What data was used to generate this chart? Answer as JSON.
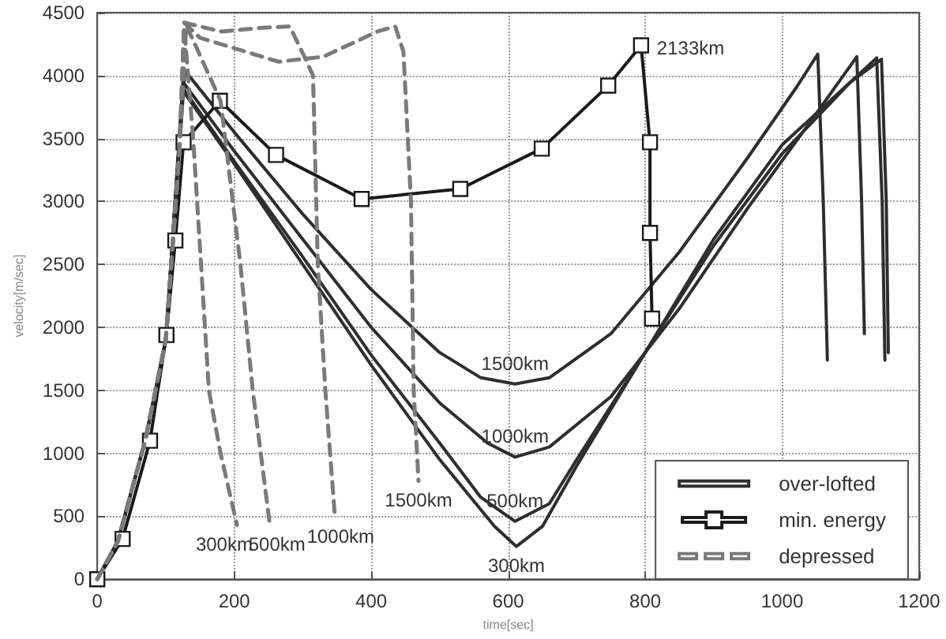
{
  "chart_data": {
    "type": "line",
    "xlabel": "time[sec]",
    "ylabel": "velocity[m/sec]",
    "xlim": [
      0,
      1200
    ],
    "xticks": [
      0,
      200,
      400,
      600,
      800,
      1000,
      1200
    ],
    "ylim": [
      0,
      4500
    ],
    "yticks": [
      0,
      500,
      1000,
      1500,
      2000,
      2500,
      3000,
      3500,
      4000,
      4500
    ],
    "grid": true,
    "legend": "bottom right",
    "marker": "none",
    "line_style": "solid",
    "series": [
      {
        "name": "over-lofted",
        "color": "#2e2e2e",
        "x": [
          0,
          30,
          70,
          100,
          125,
          200,
          300,
          400,
          500,
          580,
          612,
          650,
          700,
          800,
          900,
          1000,
          1100,
          1145,
          1152,
          1155
        ],
        "values": [
          0,
          300,
          1100,
          1900,
          3880,
          3300,
          2500,
          1700,
          950,
          420,
          260,
          420,
          900,
          1800,
          2700,
          3450,
          3950,
          4130,
          3000,
          1800
        ]
      },
      {
        "color": "#2e2e2e",
        "x": [
          0,
          30,
          70,
          100,
          125,
          200,
          300,
          400,
          500,
          560,
          610,
          660,
          700,
          800,
          900,
          1000,
          1100,
          1138,
          1146,
          1150
        ],
        "values": [
          0,
          300,
          1100,
          1900,
          3900,
          3320,
          2560,
          1780,
          1080,
          650,
          460,
          600,
          950,
          1800,
          2650,
          3380,
          3950,
          4140,
          3000,
          1740
        ]
      },
      {
        "color": "#2e2e2e",
        "x": [
          0,
          30,
          70,
          100,
          125,
          200,
          300,
          400,
          500,
          570,
          610,
          660,
          750,
          850,
          950,
          1050,
          1109,
          1116,
          1120
        ],
        "values": [
          0,
          300,
          1100,
          1900,
          3950,
          3400,
          2700,
          2000,
          1400,
          1080,
          970,
          1050,
          1450,
          2150,
          2950,
          3700,
          4150,
          3000,
          1950
        ]
      },
      {
        "color": "#2e2e2e",
        "x": [
          0,
          30,
          70,
          100,
          128,
          200,
          300,
          400,
          500,
          560,
          610,
          660,
          750,
          850,
          950,
          1020,
          1052,
          1060,
          1066
        ],
        "values": [
          0,
          300,
          1100,
          1900,
          4040,
          3550,
          2900,
          2300,
          1800,
          1600,
          1550,
          1600,
          1950,
          2600,
          3350,
          3900,
          4170,
          3000,
          1740
        ]
      },
      {
        "name": "min. energy",
        "color": "#1a1a1a",
        "marker": "square",
        "x": [
          0,
          37,
          77,
          101,
          114,
          126,
          179,
          261,
          386,
          530,
          649,
          746,
          794,
          807,
          807,
          810
        ],
        "values": [
          0,
          320,
          1100,
          1940,
          2690,
          3470,
          3800,
          3370,
          3020,
          3100,
          3420,
          3920,
          4240,
          3470,
          2750,
          2070
        ]
      },
      {
        "name": "depressed",
        "color": "#7a7a7a",
        "line_style": "dashed",
        "x": [
          0,
          30,
          70,
          100,
          120,
          127,
          140,
          163,
          180,
          204
        ],
        "values": [
          0,
          300,
          1100,
          1900,
          3400,
          4380,
          3500,
          1500,
          1000,
          430
        ]
      },
      {
        "color": "#7a7a7a",
        "line_style": "dashed",
        "x": [
          0,
          30,
          70,
          100,
          120,
          130,
          180,
          209,
          227,
          252
        ],
        "values": [
          0,
          300,
          1100,
          1900,
          3400,
          4400,
          3800,
          2500,
          1500,
          430
        ]
      },
      {
        "color": "#7a7a7a",
        "line_style": "dashed",
        "x": [
          0,
          30,
          70,
          100,
          120,
          127,
          181,
          240,
          281,
          299,
          315,
          322,
          333,
          347
        ],
        "values": [
          0,
          300,
          1100,
          1900,
          3400,
          4420,
          4350,
          4380,
          4390,
          4190,
          4000,
          2500,
          1500,
          490
        ]
      },
      {
        "color": "#7a7a7a",
        "line_style": "dashed",
        "x": [
          0,
          30,
          70,
          100,
          120,
          127,
          150,
          265,
          330,
          409,
          435,
          447,
          458,
          462,
          469
        ],
        "values": [
          0,
          300,
          1100,
          1900,
          3400,
          4420,
          4300,
          4110,
          4150,
          4350,
          4390,
          4190,
          3000,
          1500,
          780
        ]
      }
    ],
    "annotations": [
      {
        "text": "2133km",
        "x": 794,
        "y": 4240
      },
      {
        "text": "1500km",
        "x": 610,
        "y": 1550
      },
      {
        "text": "1000km",
        "x": 610,
        "y": 970
      },
      {
        "text": "500km",
        "x": 610,
        "y": 460
      },
      {
        "text": "300km",
        "x": 612,
        "y": 260
      },
      {
        "text": "300km",
        "x": 204,
        "y": 430
      },
      {
        "text": "500km",
        "x": 252,
        "y": 430
      },
      {
        "text": "1000km",
        "x": 347,
        "y": 490
      },
      {
        "text": "1500km",
        "x": 469,
        "y": 780
      }
    ]
  }
}
